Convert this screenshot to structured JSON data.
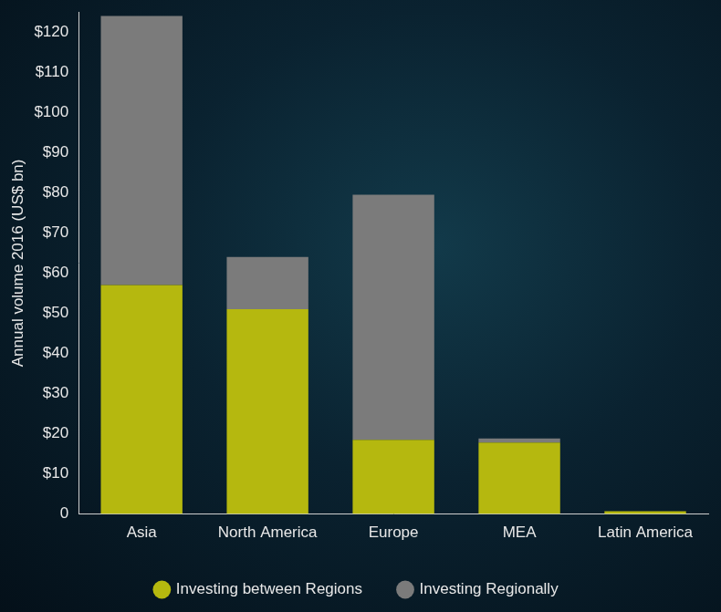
{
  "chart_data": {
    "type": "bar",
    "stacked": true,
    "y_label": "Annual volume 2016 (US$ bn)",
    "categories": [
      "Asia",
      "North America",
      "Europe",
      "MEA",
      "Latin America"
    ],
    "series": [
      {
        "name": "Investing between Regions",
        "color": "#b5b80f",
        "values": [
          57,
          51,
          18.5,
          17.8,
          0.7
        ]
      },
      {
        "name": "Investing Regionally",
        "color": "#7b7b7b",
        "values": [
          67,
          13,
          61,
          1,
          0
        ]
      }
    ],
    "ylim": [
      0,
      125
    ],
    "yticks": [
      0,
      {
        "value": 10,
        "label": "$10"
      },
      {
        "value": 20,
        "label": "$20"
      },
      {
        "value": 30,
        "label": "$30"
      },
      {
        "value": 40,
        "label": "$40"
      },
      {
        "value": 50,
        "label": "$50"
      },
      {
        "value": 60,
        "label": "$60"
      },
      {
        "value": 70,
        "label": "$70"
      },
      {
        "value": 80,
        "label": "$80"
      },
      {
        "value": 90,
        "label": "$90"
      },
      {
        "value": 100,
        "label": "$100"
      },
      {
        "value": 110,
        "label": "$110"
      },
      {
        "value": 120,
        "label": "$120"
      }
    ],
    "grid": false,
    "legend": "bottom"
  }
}
